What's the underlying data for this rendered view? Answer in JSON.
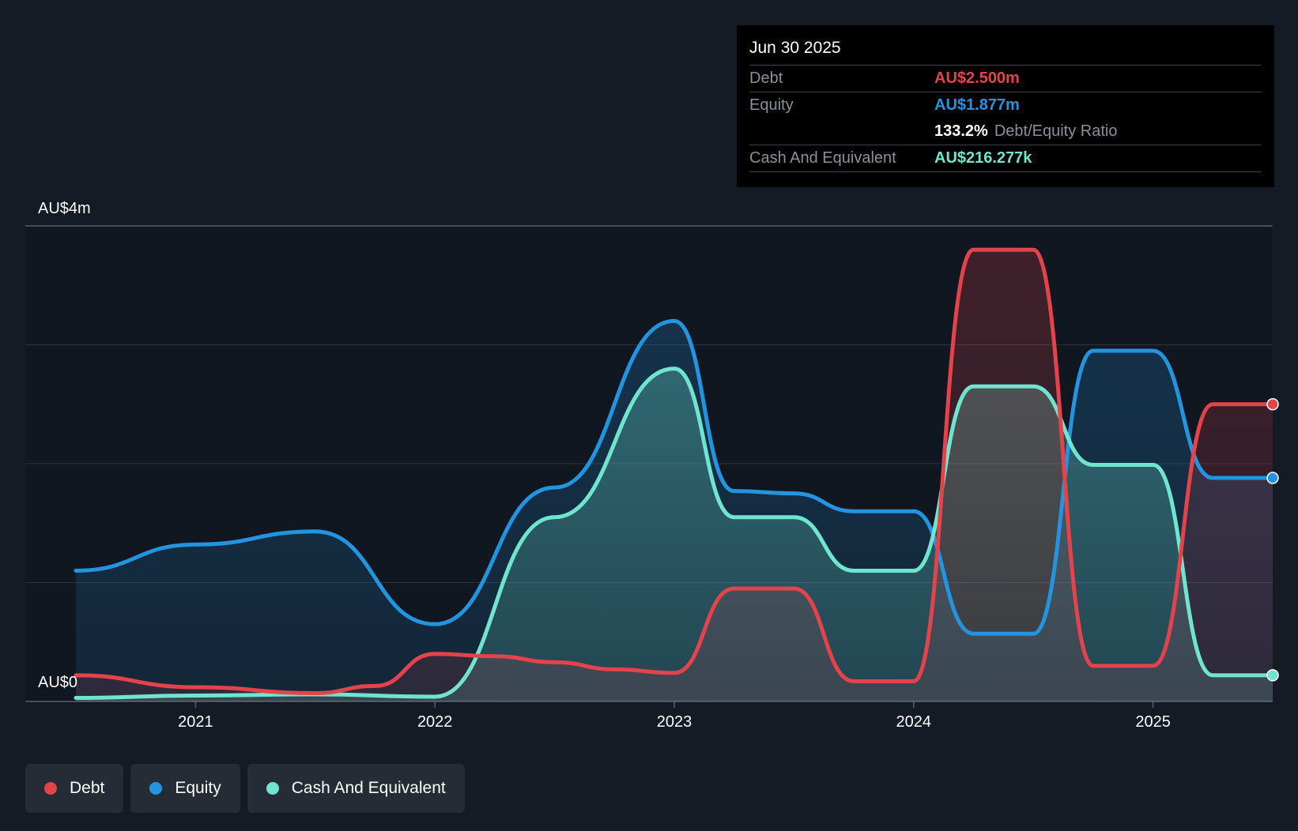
{
  "chart_data": {
    "type": "area",
    "title": "",
    "y_axis": {
      "min": 0,
      "max": 4,
      "unit": "AU$m",
      "top_label": "AU$4m",
      "bottom_label": "AU$0"
    },
    "x_ticks": [
      2021,
      2022,
      2023,
      2024,
      2025
    ],
    "x_range": [
      2020.5,
      2025.5
    ],
    "series": [
      {
        "name": "Debt",
        "color": "#e5434c",
        "points": [
          [
            2020.5,
            0.22
          ],
          [
            2021.0,
            0.12
          ],
          [
            2021.5,
            0.07
          ],
          [
            2021.75,
            0.13
          ],
          [
            2022.0,
            0.4
          ],
          [
            2022.25,
            0.38
          ],
          [
            2022.5,
            0.33
          ],
          [
            2022.75,
            0.27
          ],
          [
            2023.0,
            0.24
          ],
          [
            2023.25,
            0.95
          ],
          [
            2023.5,
            0.95
          ],
          [
            2023.75,
            0.17
          ],
          [
            2024.0,
            0.17
          ],
          [
            2024.25,
            3.8
          ],
          [
            2024.5,
            3.8
          ],
          [
            2024.75,
            0.3
          ],
          [
            2025.0,
            0.3
          ],
          [
            2025.25,
            2.5
          ],
          [
            2025.5,
            2.5
          ]
        ]
      },
      {
        "name": "Equity",
        "color": "#2394df",
        "points": [
          [
            2020.5,
            1.1
          ],
          [
            2021.0,
            1.32
          ],
          [
            2021.5,
            1.43
          ],
          [
            2022.0,
            0.65
          ],
          [
            2022.5,
            1.8
          ],
          [
            2023.0,
            3.2
          ],
          [
            2023.25,
            1.77
          ],
          [
            2023.5,
            1.75
          ],
          [
            2023.75,
            1.6
          ],
          [
            2024.0,
            1.6
          ],
          [
            2024.25,
            0.57
          ],
          [
            2024.5,
            0.57
          ],
          [
            2024.75,
            2.95
          ],
          [
            2025.0,
            2.95
          ],
          [
            2025.25,
            1.88
          ],
          [
            2025.5,
            1.88
          ]
        ]
      },
      {
        "name": "Cash And Equivalent",
        "color": "#6fe5cf",
        "points": [
          [
            2020.5,
            0.03
          ],
          [
            2021.0,
            0.05
          ],
          [
            2021.5,
            0.06
          ],
          [
            2022.0,
            0.04
          ],
          [
            2022.5,
            1.55
          ],
          [
            2023.0,
            2.8
          ],
          [
            2023.25,
            1.55
          ],
          [
            2023.5,
            1.55
          ],
          [
            2023.75,
            1.1
          ],
          [
            2024.0,
            1.1
          ],
          [
            2024.25,
            2.65
          ],
          [
            2024.5,
            2.65
          ],
          [
            2024.75,
            1.99
          ],
          [
            2025.0,
            1.99
          ],
          [
            2025.25,
            0.22
          ],
          [
            2025.5,
            0.22
          ]
        ]
      }
    ]
  },
  "tooltip": {
    "date": "Jun 30 2025",
    "debt_label": "Debt",
    "debt_value": "AU$2.500m",
    "equity_label": "Equity",
    "equity_value": "AU$1.877m",
    "ratio_value": "133.2%",
    "ratio_label": "Debt/Equity Ratio",
    "cash_label": "Cash And Equivalent",
    "cash_value": "AU$216.277k"
  },
  "legend": [
    {
      "label": "Debt",
      "color": "#e5434c"
    },
    {
      "label": "Equity",
      "color": "#2394df"
    },
    {
      "label": "Cash And Equivalent",
      "color": "#6fe5cf"
    }
  ]
}
